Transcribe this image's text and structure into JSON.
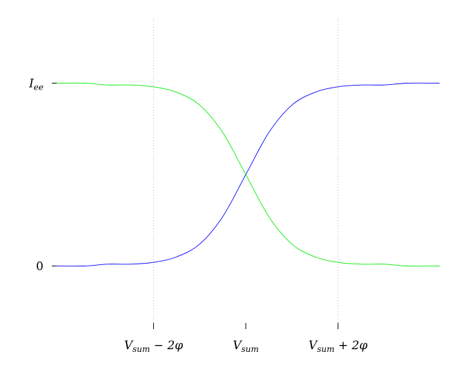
{
  "chart_data": {
    "type": "line",
    "title": "",
    "xlabel": "",
    "ylabel": "",
    "xlim": [
      -4.4,
      4.2
    ],
    "ylim": [
      -0.33,
      1.37
    ],
    "x_ticks": [
      {
        "value": -2,
        "main": "V",
        "sub": "sum",
        "suffix": " − 2φ"
      },
      {
        "value": 0,
        "main": "V",
        "sub": "sum",
        "suffix": ""
      },
      {
        "value": 2,
        "main": "V",
        "sub": "sum",
        "suffix": " + 2φ"
      }
    ],
    "y_ticks": [
      {
        "value": 0,
        "main": "0",
        "sub": "",
        "italic": false
      },
      {
        "value": 1,
        "main": "I",
        "sub": "ee",
        "italic": true
      }
    ],
    "vertical_gridlines": [
      -2,
      2
    ],
    "grid": false,
    "legend": "none",
    "series": [
      {
        "color": "#0000ff",
        "x": [
          -4.2,
          -3.5,
          -3.0,
          -2.5,
          -2.0,
          -1.5,
          -1.0,
          -0.5,
          0.0,
          0.5,
          1.0,
          1.5,
          2.0,
          2.5,
          3.0,
          3.5,
          4.2
        ],
        "values": [
          0.0,
          0.0,
          0.01,
          0.01,
          0.02,
          0.05,
          0.12,
          0.27,
          0.5,
          0.73,
          0.88,
          0.95,
          0.98,
          0.99,
          0.99,
          1.0,
          1.0
        ]
      },
      {
        "color": "#00ee00",
        "x": [
          -4.2,
          -3.5,
          -3.0,
          -2.5,
          -2.0,
          -1.5,
          -1.0,
          -0.5,
          0.0,
          0.5,
          1.0,
          1.5,
          2.0,
          2.5,
          3.0,
          3.5,
          4.2
        ],
        "values": [
          1.0,
          1.0,
          0.99,
          0.99,
          0.98,
          0.95,
          0.88,
          0.73,
          0.5,
          0.27,
          0.12,
          0.05,
          0.02,
          0.01,
          0.01,
          0.0,
          0.0
        ]
      }
    ]
  }
}
